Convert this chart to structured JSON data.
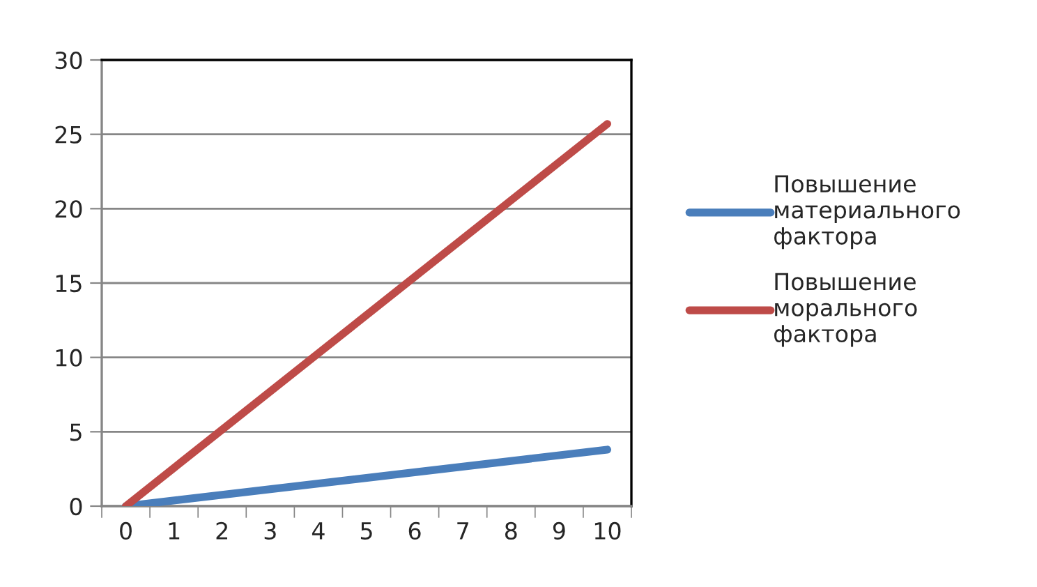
{
  "chart_data": {
    "type": "line",
    "categories": [
      "0",
      "1",
      "2",
      "3",
      "4",
      "5",
      "6",
      "7",
      "8",
      "9",
      "10"
    ],
    "series": [
      {
        "name": "Повышение материального фактора",
        "color": "#4a7ebb",
        "values": [
          0,
          null,
          null,
          null,
          null,
          null,
          null,
          null,
          null,
          null,
          3.8
        ]
      },
      {
        "name": "Повышение морального фактора",
        "color": "#be4b48",
        "values": [
          0,
          null,
          null,
          null,
          null,
          null,
          null,
          null,
          null,
          null,
          25.7
        ]
      }
    ],
    "ylim": [
      0,
      30
    ],
    "yticks": [
      0,
      5,
      10,
      15,
      20,
      25,
      30
    ],
    "grid": "y",
    "legend": "right",
    "marker": "none",
    "line_style": "solid"
  }
}
